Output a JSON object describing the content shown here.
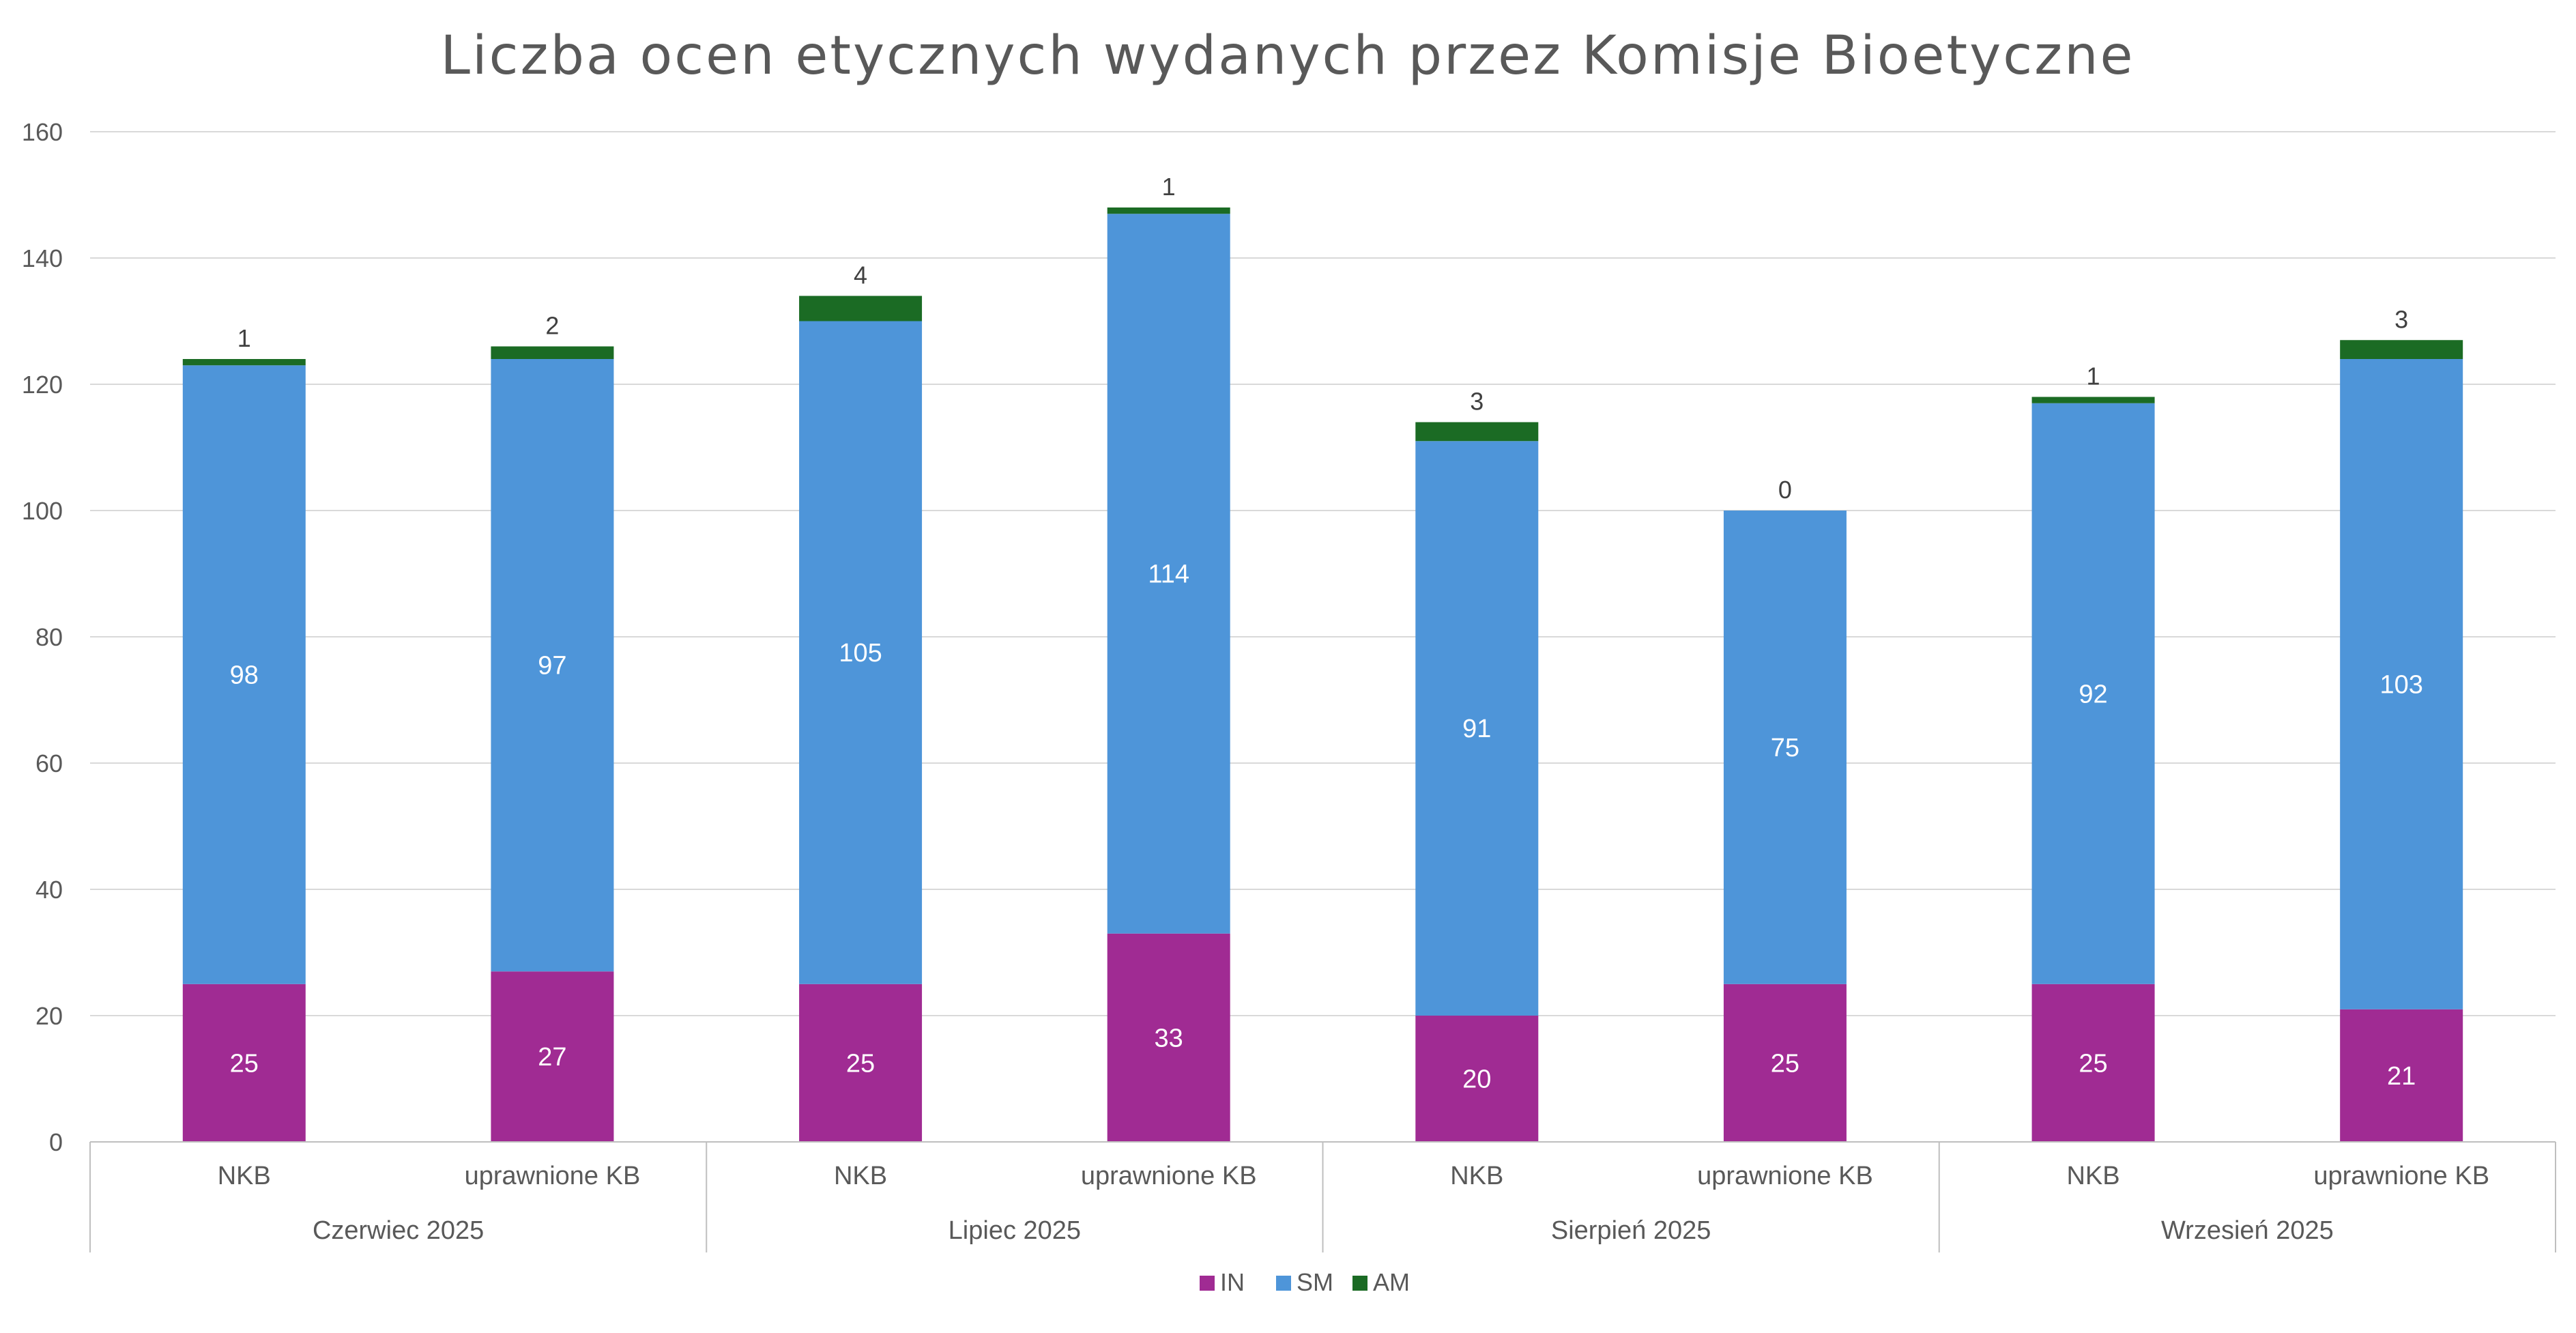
{
  "chart_data": {
    "type": "bar",
    "stacked": true,
    "title": "Liczba ocen etycznych wydanych przez Komisje Bioetyczne",
    "groups": [
      "Czerwiec 2025",
      "Lipiec 2025",
      "Sierpień 2025",
      "Wrzesień 2025"
    ],
    "categories": [
      "NKB",
      "uprawnione KB",
      "NKB",
      "uprawnione KB",
      "NKB",
      "uprawnione KB",
      "NKB",
      "uprawnione KB"
    ],
    "series": [
      {
        "name": "IN",
        "color": "#A02B93",
        "values": [
          25,
          27,
          25,
          33,
          20,
          25,
          25,
          21
        ]
      },
      {
        "name": "SM",
        "color": "#4E95D9",
        "values": [
          98,
          97,
          105,
          114,
          91,
          75,
          92,
          103
        ]
      },
      {
        "name": "AM",
        "color": "#1B6B24",
        "values": [
          1,
          2,
          4,
          1,
          3,
          0,
          1,
          3
        ]
      }
    ],
    "ylim": [
      0,
      160
    ],
    "yticks": [
      0,
      20,
      40,
      60,
      80,
      100,
      120,
      140,
      160
    ],
    "grid": true,
    "legend": "bottom"
  }
}
